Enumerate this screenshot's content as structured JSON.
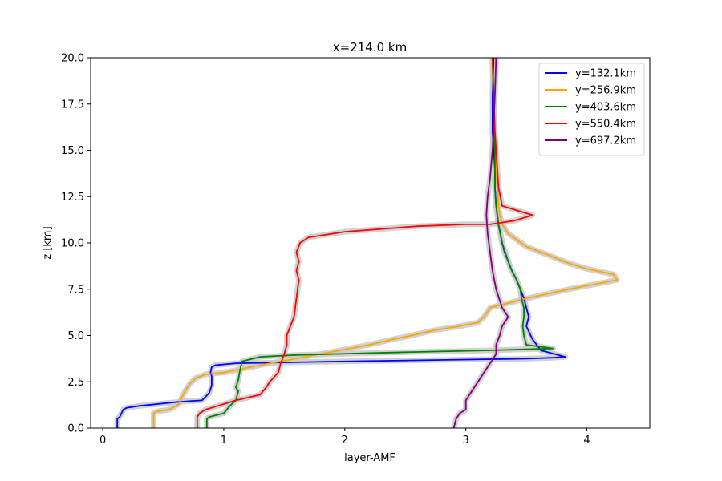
{
  "chart_data": {
    "type": "line",
    "title": "x=214.0 km",
    "xlabel": "layer-AMF",
    "ylabel": "z [km]",
    "xlim": [
      -0.1,
      4.52
    ],
    "ylim": [
      0,
      20
    ],
    "xticks": [
      0,
      1,
      2,
      3,
      4
    ],
    "xtick_labels": [
      "0",
      "1",
      "2",
      "3",
      "4"
    ],
    "yticks": [
      0,
      2.5,
      5,
      7.5,
      10,
      12.5,
      15,
      17.5,
      20
    ],
    "ytick_labels": [
      "0.0",
      "2.5",
      "5.0",
      "7.5",
      "10.0",
      "12.5",
      "15.0",
      "17.5",
      "20.0"
    ],
    "grid": false,
    "legend_position": "top-right",
    "uncertainty_band_color": "#cccccc",
    "series": [
      {
        "name": "y=132.1km",
        "color": "#0000ff",
        "x": [
          0.12,
          0.12,
          0.14,
          0.17,
          0.2,
          0.3,
          0.45,
          0.6,
          0.7,
          0.82,
          0.88,
          0.9,
          0.9,
          0.9,
          0.89,
          0.9,
          0.93,
          1.1,
          2.0,
          3.0,
          3.5,
          3.72,
          3.82,
          3.62,
          3.55,
          3.5,
          3.52,
          3.48,
          3.45,
          3.42,
          3.38,
          3.35,
          3.32,
          3.3,
          3.27,
          3.25,
          3.24,
          3.24,
          3.23,
          3.22,
          3.22,
          3.23
        ],
        "y": [
          0,
          0.5,
          0.6,
          1.0,
          1.1,
          1.2,
          1.3,
          1.4,
          1.45,
          1.5,
          1.9,
          2.3,
          2.6,
          2.8,
          3.0,
          3.3,
          3.4,
          3.5,
          3.6,
          3.7,
          3.75,
          3.8,
          3.85,
          4.2,
          4.8,
          5.5,
          6.0,
          7.0,
          7.5,
          8.0,
          8.5,
          9.0,
          9.5,
          10.0,
          11.0,
          12.0,
          13.0,
          14.0,
          15.0,
          16.0,
          18.0,
          20.0
        ]
      },
      {
        "name": "y=256.9km",
        "color": "#ffa500",
        "x": [
          0.42,
          0.42,
          0.45,
          0.55,
          0.63,
          0.65,
          0.68,
          0.72,
          0.77,
          0.85,
          1.0,
          1.3,
          1.8,
          2.2,
          2.4,
          2.55,
          2.75,
          2.95,
          3.1,
          3.15,
          3.2,
          3.5,
          3.85,
          4.25,
          4.22,
          4.0,
          3.85,
          3.7,
          3.5,
          3.35,
          3.3,
          3.28,
          3.27,
          3.26,
          3.25,
          3.24,
          3.23,
          3.22
        ],
        "y": [
          0,
          0.8,
          0.9,
          1.0,
          1.3,
          1.6,
          2.0,
          2.4,
          2.7,
          2.9,
          3.0,
          3.4,
          4.0,
          4.5,
          4.8,
          5.0,
          5.3,
          5.5,
          5.7,
          6.0,
          6.5,
          7.0,
          7.5,
          8.0,
          8.3,
          8.6,
          8.9,
          9.3,
          9.8,
          10.5,
          11.0,
          11.5,
          12.0,
          13.0,
          14.0,
          15.0,
          17.0,
          20.0
        ]
      },
      {
        "name": "y=403.6km",
        "color": "#008000",
        "x": [
          0.86,
          0.86,
          0.88,
          1.0,
          1.05,
          1.1,
          1.12,
          1.1,
          1.12,
          1.13,
          1.15,
          1.3,
          1.6,
          2.5,
          3.2,
          3.72,
          3.5,
          3.48,
          3.47,
          3.48,
          3.48,
          3.46,
          3.45,
          3.42,
          3.38,
          3.35,
          3.3,
          3.27,
          3.25,
          3.24,
          3.24,
          3.23,
          3.22
        ],
        "y": [
          0,
          0.5,
          0.6,
          0.8,
          1.2,
          1.5,
          2.0,
          2.2,
          2.6,
          3.0,
          3.6,
          3.85,
          3.95,
          4.1,
          4.2,
          4.3,
          4.5,
          5.0,
          5.5,
          6.0,
          6.5,
          7.0,
          7.5,
          8.0,
          8.5,
          9.0,
          10.0,
          11.0,
          12.0,
          13.0,
          15.0,
          17.0,
          20.0
        ]
      },
      {
        "name": "y=550.4km",
        "color": "#ff0000",
        "x": [
          0.78,
          0.78,
          0.8,
          0.85,
          0.95,
          1.1,
          1.3,
          1.35,
          1.38,
          1.45,
          1.47,
          1.5,
          1.52,
          1.52,
          1.55,
          1.58,
          1.6,
          1.62,
          1.6,
          1.62,
          1.6,
          1.63,
          1.7,
          2.0,
          2.6,
          3.0,
          3.2,
          3.4,
          3.55,
          3.4,
          3.3,
          3.27,
          3.26,
          3.25,
          3.24,
          3.23,
          3.22
        ],
        "y": [
          0,
          0.6,
          0.8,
          1.0,
          1.2,
          1.5,
          1.8,
          2.2,
          2.5,
          3.0,
          3.5,
          4.0,
          4.5,
          5.0,
          5.5,
          6.0,
          7.0,
          8.0,
          8.5,
          9.0,
          9.5,
          10.0,
          10.3,
          10.6,
          10.9,
          11.0,
          11.0,
          11.2,
          11.5,
          11.8,
          12.0,
          13.0,
          14.0,
          15.0,
          16.0,
          18.0,
          20.0
        ]
      },
      {
        "name": "y=697.2km",
        "color": "#800080",
        "x": [
          2.9,
          2.92,
          2.95,
          3.0,
          3.0,
          3.05,
          3.1,
          3.15,
          3.2,
          3.25,
          3.25,
          3.28,
          3.3,
          3.35,
          3.3,
          3.25,
          3.22,
          3.2,
          3.18,
          3.17,
          3.18,
          3.2,
          3.22,
          3.23,
          3.24,
          3.25
        ],
        "y": [
          0,
          0.5,
          0.8,
          1.0,
          1.5,
          2.0,
          2.5,
          3.0,
          3.5,
          4.0,
          4.5,
          5.0,
          5.5,
          6.0,
          6.5,
          7.5,
          8.5,
          9.5,
          10.5,
          11.5,
          12.5,
          13.5,
          15.0,
          16.5,
          18.0,
          20.0
        ]
      }
    ]
  }
}
